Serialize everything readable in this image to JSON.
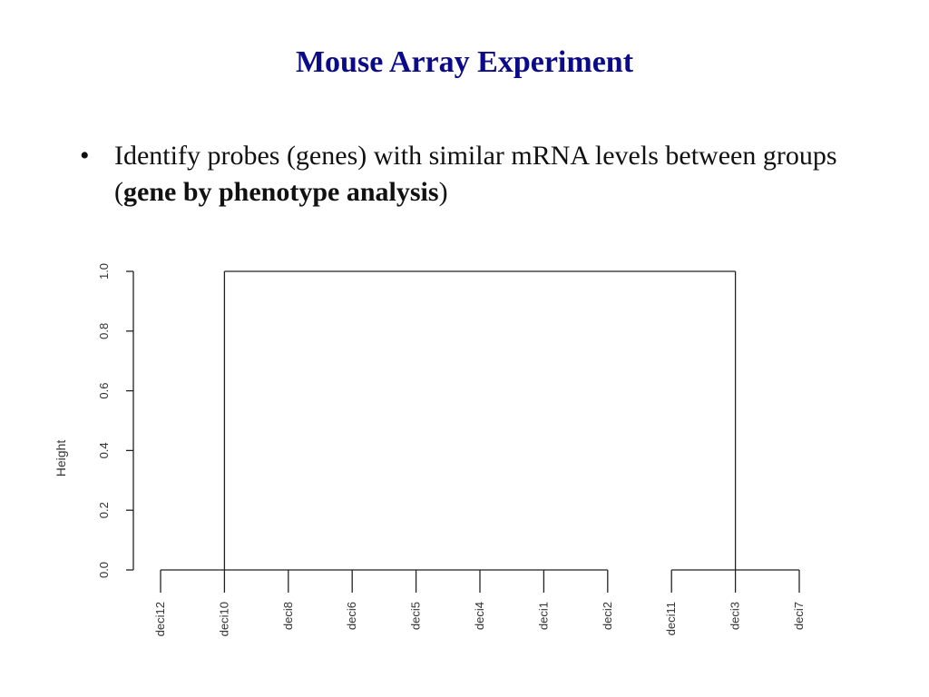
{
  "slide": {
    "title": "Mouse Array Experiment",
    "bullet": {
      "glyph": "•",
      "text_before": "Identify probes (genes) with similar mRNA levels between groups (",
      "bold_text": "gene by phenotype analysis",
      "text_after": ")"
    }
  },
  "colors": {
    "title": "#0b0b8a",
    "text": "#111111",
    "lines": "#222222"
  },
  "chart_data": {
    "type": "dendrogram",
    "ylabel": "Height",
    "ylim": [
      0,
      1
    ],
    "yticks": [
      "0.0",
      "0.2",
      "0.4",
      "0.6",
      "0.8",
      "1.0"
    ],
    "leaves": [
      "deci12",
      "deci10",
      "deci8",
      "deci6",
      "deci5",
      "deci4",
      "deci1",
      "deci2",
      "deci11",
      "deci3",
      "deci7"
    ],
    "merges": [
      {
        "height": 0.0,
        "members": [
          "deci12",
          "deci10",
          "deci8",
          "deci6",
          "deci5",
          "deci4",
          "deci1",
          "deci2"
        ]
      },
      {
        "height": 0.0,
        "members": [
          "deci11",
          "deci3",
          "deci7"
        ]
      },
      {
        "height": 1.0,
        "children": [
          "cluster-1",
          "cluster-2"
        ]
      }
    ]
  }
}
